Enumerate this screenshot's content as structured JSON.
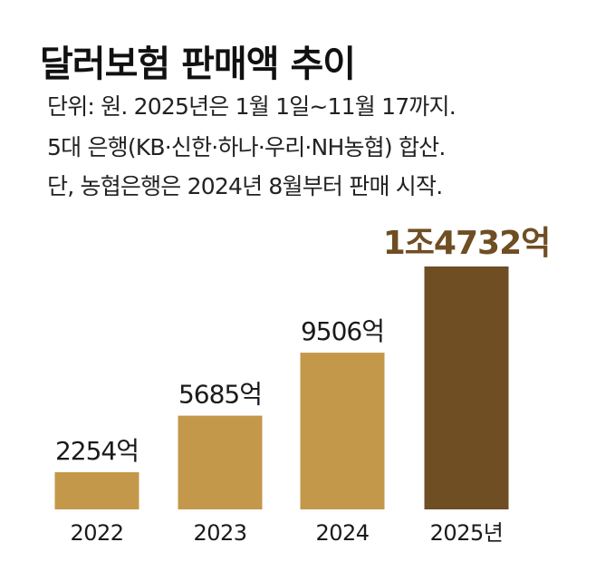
{
  "header": {
    "title": "달러보험 판매액 추이",
    "notes": [
      "단위: 원.  2025년은 1월 1일~11월 17까지.",
      "5대 은행(KB·신한·하나·우리·NH농협) 합산.",
      "단, 농협은행은 2024년 8월부터 판매 시작."
    ]
  },
  "chart_data": {
    "type": "bar",
    "categories": [
      "2022",
      "2023",
      "2024",
      "2025년"
    ],
    "values": [
      2254,
      5685,
      9506,
      14732
    ],
    "value_labels": [
      "2254억",
      "5685억",
      "9506억",
      "1조4732억"
    ],
    "unit": "억 원",
    "colors": {
      "bar": "#c4984a",
      "highlight_bar": "#6f4e23",
      "highlight_label": "#6f4e23",
      "label": "#1a1a1a"
    },
    "highlight_index": 3,
    "grid": false,
    "legend": "none"
  }
}
